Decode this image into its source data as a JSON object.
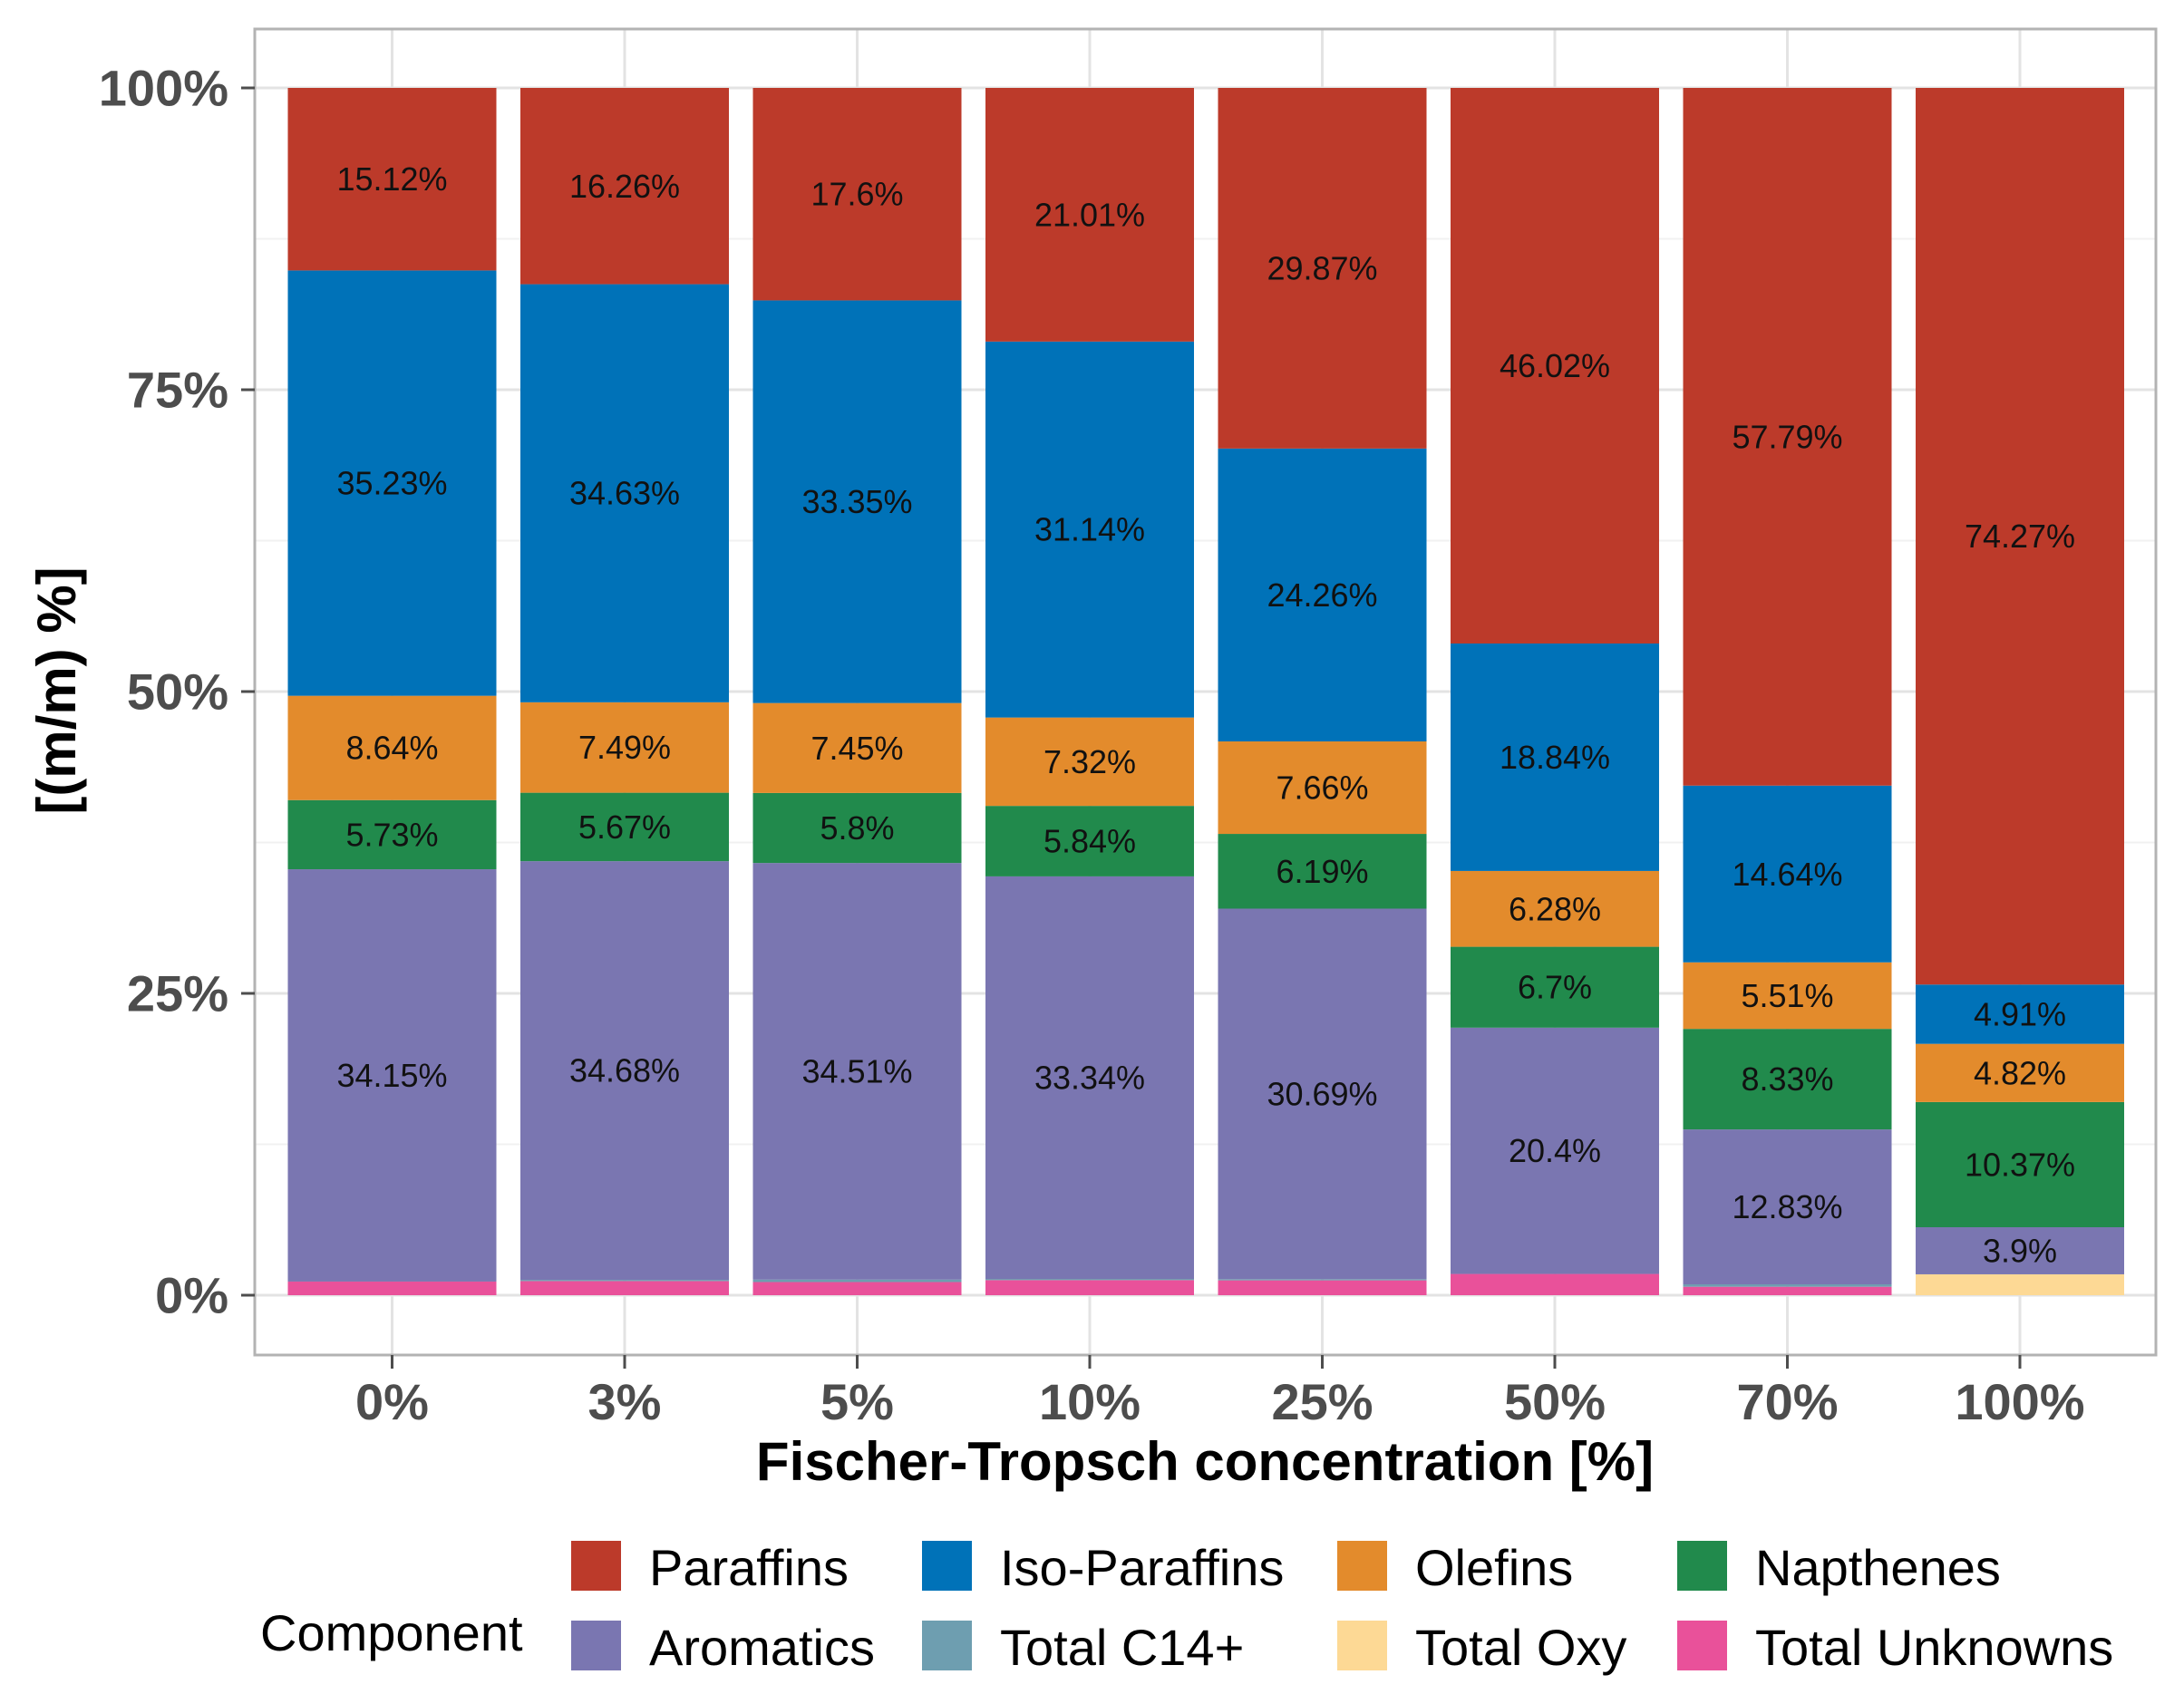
{
  "chart_data": {
    "type": "bar",
    "stacked": true,
    "title": "",
    "xlabel": "Fischer-Tropsch concentration [%]",
    "ylabel": "[(m/m) %]",
    "ylim": [
      0,
      100
    ],
    "yticks": [
      0,
      25,
      50,
      75,
      100
    ],
    "ytick_labels": [
      "0%",
      "25%",
      "50%",
      "75%",
      "100%"
    ],
    "categories": [
      "0%",
      "3%",
      "5%",
      "10%",
      "25%",
      "50%",
      "70%",
      "100%"
    ],
    "grid": true,
    "legend_title": "Component",
    "legend_position": "bottom",
    "stack_order_bottom_to_top": [
      "Total Unknowns",
      "Total Oxy",
      "Total C14+",
      "Aromatics",
      "Napthenes",
      "Olefins",
      "Iso-Paraffins",
      "Paraffins"
    ],
    "series": [
      {
        "name": "Paraffins",
        "color": "#bc3a2a",
        "values": [
          15.12,
          16.26,
          17.6,
          21.01,
          29.87,
          46.02,
          57.79,
          74.27
        ],
        "labels": [
          "15.12%",
          "16.26%",
          "17.6%",
          "21.01%",
          "29.87%",
          "46.02%",
          "57.79%",
          "74.27%"
        ]
      },
      {
        "name": "Iso-Paraffins",
        "color": "#0072b8",
        "values": [
          35.23,
          34.63,
          33.35,
          31.14,
          24.26,
          18.84,
          14.64,
          4.91
        ],
        "labels": [
          "35.23%",
          "34.63%",
          "33.35%",
          "31.14%",
          "24.26%",
          "18.84%",
          "14.64%",
          "4.91%"
        ]
      },
      {
        "name": "Olefins",
        "color": "#e38b2c",
        "values": [
          8.64,
          7.49,
          7.45,
          7.32,
          7.66,
          6.28,
          5.51,
          4.82
        ],
        "labels": [
          "8.64%",
          "7.49%",
          "7.45%",
          "7.32%",
          "7.66%",
          "6.28%",
          "5.51%",
          "4.82%"
        ]
      },
      {
        "name": "Napthenes",
        "color": "#218a4c",
        "values": [
          5.73,
          5.67,
          5.8,
          5.84,
          6.19,
          6.7,
          8.33,
          10.37
        ],
        "labels": [
          "5.73%",
          "5.67%",
          "5.8%",
          "5.84%",
          "6.19%",
          "6.7%",
          "8.33%",
          "10.37%"
        ]
      },
      {
        "name": "Aromatics",
        "color": "#7a76b1",
        "values": [
          34.15,
          34.68,
          34.51,
          33.34,
          30.69,
          20.4,
          12.83,
          3.9
        ],
        "labels": [
          "34.15%",
          "34.68%",
          "34.51%",
          "33.34%",
          "30.69%",
          "20.4%",
          "12.83%",
          "3.9%"
        ]
      },
      {
        "name": "Total C14+",
        "color": "#6e9eb0",
        "values": [
          0.0,
          0.1,
          0.2,
          0.1,
          0.1,
          0.0,
          0.2,
          0.0
        ],
        "labels": [
          "",
          "",
          "",
          "",
          "",
          "",
          "",
          ""
        ]
      },
      {
        "name": "Total Oxy",
        "color": "#fdd995",
        "values": [
          0.0,
          0.0,
          0.0,
          0.0,
          0.0,
          0.0,
          0.0,
          1.73
        ],
        "labels": [
          "",
          "",
          "",
          "",
          "",
          "",
          "",
          ""
        ]
      },
      {
        "name": "Total Unknowns",
        "color": "#e9519a",
        "values": [
          1.13,
          1.17,
          1.09,
          1.25,
          1.23,
          1.76,
          0.7,
          0.0
        ],
        "labels": [
          "",
          "",
          "",
          "",
          "",
          "",
          "",
          ""
        ]
      }
    ]
  }
}
